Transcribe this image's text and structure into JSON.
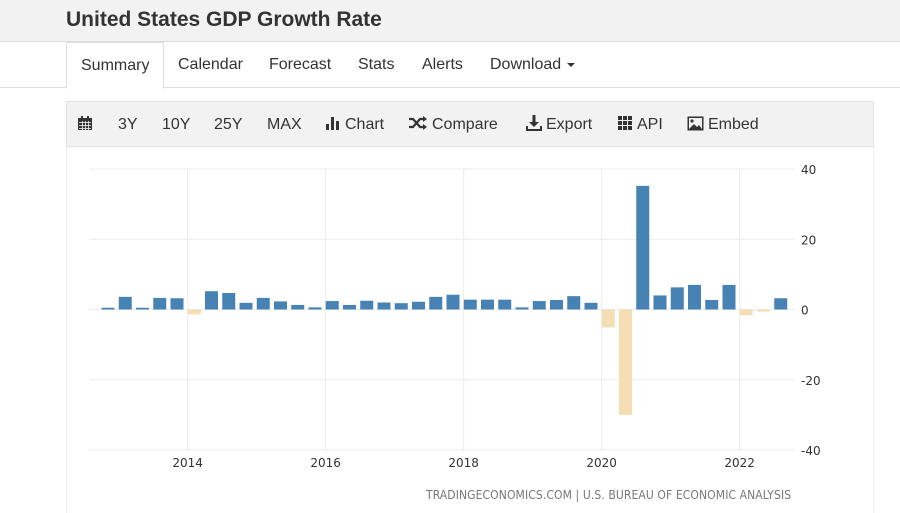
{
  "header": {
    "title": "United States GDP Growth Rate"
  },
  "tabs": [
    {
      "label": "Summary",
      "active": true
    },
    {
      "label": "Calendar"
    },
    {
      "label": "Forecast"
    },
    {
      "label": "Stats"
    },
    {
      "label": "Alerts"
    },
    {
      "label": "Download"
    }
  ],
  "toolbar": {
    "calendar_icon": "calendar-icon",
    "ranges": [
      "3Y",
      "10Y",
      "25Y",
      "MAX"
    ],
    "chart": "Chart",
    "compare": "Compare",
    "export": "Export",
    "api": "API",
    "embed": "Embed"
  },
  "source": "TRADINGECONOMICS.COM | U.S. BUREAU OF ECONOMIC ANALYSIS",
  "colors": {
    "positive": "#4682b4",
    "negative": "#f5deb3"
  },
  "chart_data": {
    "type": "bar",
    "title": "United States GDP Growth Rate",
    "xlabel": "",
    "ylabel": "",
    "ylim": [
      -40,
      40
    ],
    "yticks": [
      "40",
      "20",
      "0",
      "-20",
      "-40"
    ],
    "xticks": [
      "2014",
      "2016",
      "2018",
      "2020",
      "2022"
    ],
    "grid": true,
    "categories": [
      "2012Q4",
      "2013Q1",
      "2013Q2",
      "2013Q3",
      "2013Q4",
      "2014Q1",
      "2014Q2",
      "2014Q3",
      "2014Q4",
      "2015Q1",
      "2015Q2",
      "2015Q3",
      "2015Q4",
      "2016Q1",
      "2016Q2",
      "2016Q3",
      "2016Q4",
      "2017Q1",
      "2017Q2",
      "2017Q3",
      "2017Q4",
      "2018Q1",
      "2018Q2",
      "2018Q3",
      "2018Q4",
      "2019Q1",
      "2019Q2",
      "2019Q3",
      "2019Q4",
      "2020Q1",
      "2020Q2",
      "2020Q3",
      "2020Q4",
      "2021Q1",
      "2021Q2",
      "2021Q3",
      "2021Q4",
      "2022Q1",
      "2022Q2",
      "2022Q3"
    ],
    "values": [
      0.5,
      3.6,
      0.5,
      3.3,
      3.2,
      -1.4,
      5.2,
      4.7,
      1.9,
      3.3,
      2.3,
      1.3,
      0.6,
      2.4,
      1.3,
      2.5,
      2.0,
      1.8,
      2.2,
      3.6,
      4.2,
      2.8,
      2.8,
      2.8,
      0.6,
      2.4,
      2.7,
      3.8,
      1.9,
      -5.1,
      -30.0,
      35.2,
      4.0,
      6.3,
      7.0,
      2.7,
      7.0,
      -1.6,
      -0.6,
      3.2
    ]
  }
}
